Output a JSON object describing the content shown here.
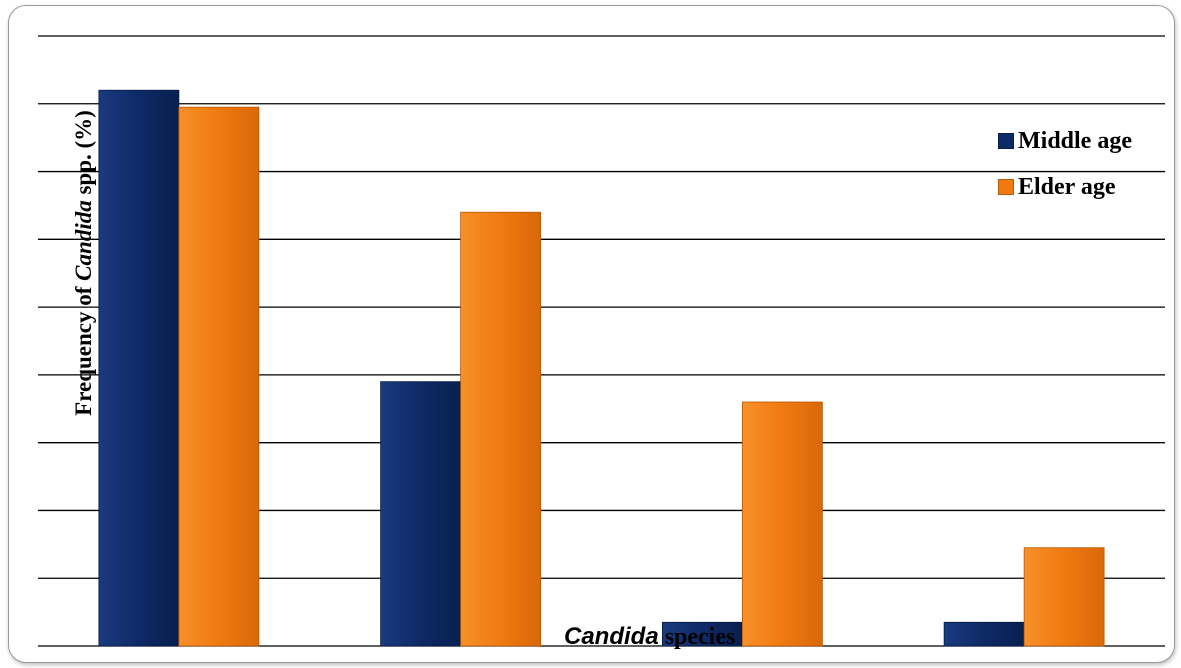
{
  "chart_data": {
    "type": "bar",
    "categories": [
      "",
      "",
      "",
      ""
    ],
    "series": [
      {
        "name": "Middle age",
        "color": "#0d2a66",
        "values": [
          82,
          39,
          3.5,
          3.5
        ]
      },
      {
        "name": "Elder age",
        "color": "#f07a10",
        "values": [
          79.5,
          64,
          36,
          14.5
        ]
      }
    ],
    "ylim": [
      0,
      90
    ],
    "grid_step": 10,
    "grid": true,
    "legend_position": "right",
    "xlabel_italic": "Candida",
    "xlabel_rest": " species",
    "ylabel_pre": "Frequency of ",
    "ylabel_italic": "Candida",
    "ylabel_post": " spp. (%)"
  }
}
